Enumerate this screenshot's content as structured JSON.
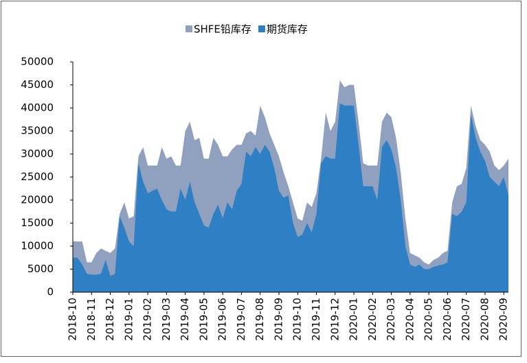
{
  "chart_data": {
    "type": "area",
    "categories": [
      "2018-10",
      null,
      null,
      null,
      "2018-11",
      null,
      null,
      null,
      "2018-12",
      null,
      null,
      null,
      "2019-01",
      null,
      null,
      null,
      "2019-02",
      null,
      null,
      null,
      "2019-03",
      null,
      null,
      null,
      "2019-04",
      null,
      null,
      null,
      "2019-05",
      null,
      null,
      null,
      "2019-06",
      null,
      null,
      null,
      "2019-07",
      null,
      null,
      null,
      "2019-08",
      null,
      null,
      null,
      "2019-09",
      null,
      null,
      null,
      "2019-10",
      null,
      null,
      null,
      "2019-11",
      null,
      null,
      null,
      "2019-12",
      null,
      null,
      null,
      "2020-01",
      null,
      null,
      null,
      "2020-02",
      null,
      null,
      null,
      "2020-03",
      null,
      null,
      null,
      "2020-04",
      null,
      null,
      null,
      "2020-05",
      null,
      null,
      null,
      "2020-06",
      null,
      null,
      null,
      "2020-07",
      null,
      null,
      null,
      "2020-08",
      null,
      null,
      null,
      "2020-09",
      null
    ],
    "series": [
      {
        "name": "SHFE铅库存",
        "color": "#8fa1bf",
        "values": [
          11000,
          11000,
          11000,
          6500,
          6500,
          8500,
          9500,
          9000,
          8500,
          9500,
          17000,
          19500,
          16000,
          16500,
          29500,
          31500,
          27500,
          27500,
          27500,
          31500,
          29000,
          29500,
          27500,
          27500,
          35000,
          37000,
          33000,
          33500,
          29000,
          29000,
          33500,
          32000,
          29500,
          29500,
          31000,
          32000,
          32000,
          34500,
          35000,
          34000,
          40500,
          38000,
          34500,
          32000,
          29500,
          26000,
          23000,
          19500,
          16000,
          15500,
          19500,
          18500,
          21500,
          29000,
          39000,
          35000,
          37000,
          46000,
          44500,
          45000,
          45000,
          37000,
          28000,
          27500,
          27500,
          27500,
          37000,
          39000,
          38000,
          33500,
          26000,
          16000,
          8500,
          8000,
          7500,
          6500,
          6000,
          7000,
          7500,
          8500,
          9000,
          19500,
          23000,
          23500,
          27000,
          40500,
          36000,
          33000,
          32000,
          30500,
          27500,
          26500,
          27500,
          29000
        ]
      },
      {
        "name": "期货库存",
        "color": "#2e7fc4",
        "values": [
          7500,
          7500,
          6000,
          4000,
          3800,
          3800,
          4000,
          7000,
          3500,
          4000,
          16500,
          14000,
          11000,
          10000,
          28000,
          24000,
          21500,
          22000,
          22500,
          20000,
          18000,
          17500,
          17500,
          22500,
          20000,
          24000,
          19500,
          17000,
          14500,
          14000,
          17000,
          19000,
          16000,
          19500,
          18000,
          22000,
          23500,
          30500,
          29500,
          31500,
          30000,
          32000,
          30500,
          27000,
          22000,
          20500,
          21000,
          15000,
          12000,
          12500,
          15000,
          13000,
          17000,
          28000,
          29500,
          29000,
          29000,
          41000,
          40500,
          40500,
          40500,
          32000,
          23000,
          23000,
          23000,
          20000,
          31500,
          33000,
          31000,
          27000,
          20000,
          10000,
          6000,
          5500,
          6000,
          5000,
          5000,
          5500,
          5800,
          6000,
          6500,
          17000,
          16500,
          17500,
          19500,
          38500,
          33500,
          30500,
          28500,
          25000,
          24000,
          23000,
          25000,
          21000
        ]
      }
    ],
    "ylim": [
      0,
      50000
    ],
    "yticks": [
      0,
      5000,
      10000,
      15000,
      20000,
      25000,
      30000,
      35000,
      40000,
      45000,
      50000
    ]
  }
}
